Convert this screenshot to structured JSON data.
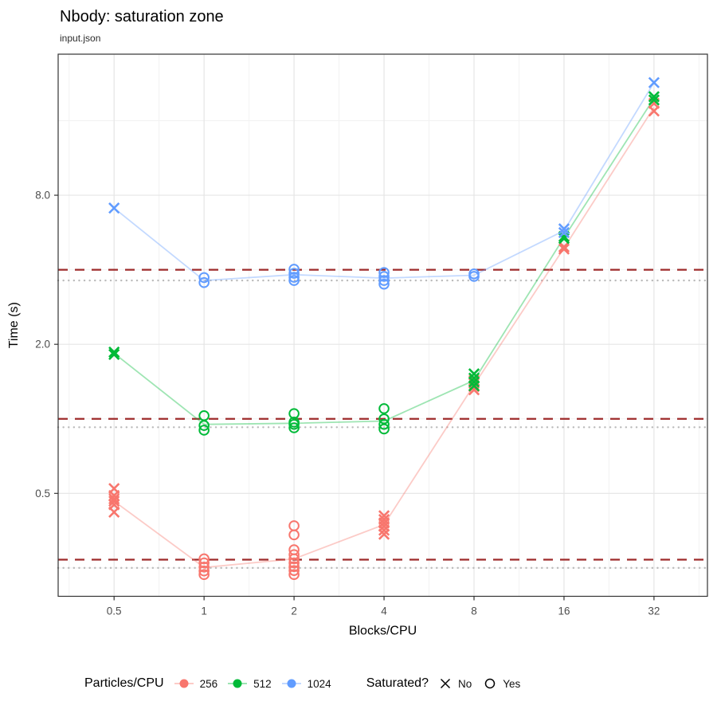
{
  "chart_data": {
    "type": "scatter",
    "title": "Nbody: saturation zone",
    "subtitle": "input.json",
    "xlabel": "Blocks/CPU",
    "ylabel": "Time (s)",
    "x_scale": "log2",
    "y_scale": "log2",
    "x_ticks": [
      0.5,
      1,
      2,
      4,
      8,
      16,
      32
    ],
    "x_tick_labels": [
      "0.5",
      "1",
      "2",
      "4",
      "8",
      "16",
      "32"
    ],
    "y_ticks": [
      0.5,
      2,
      8
    ],
    "y_tick_labels": [
      "0.5",
      "2.0",
      "8.0"
    ],
    "x_minor": [
      0.3536,
      0.7071,
      1.4142,
      2.8284,
      5.6569,
      11.3137,
      22.6274,
      45.2548
    ],
    "y_minor": [
      0.25,
      1,
      4,
      16
    ],
    "x_range": [
      0.325,
      48.3
    ],
    "y_range": [
      0.192,
      29.7
    ],
    "grid": true,
    "panel_border_color": "#333333",
    "grid_major_color": "#e5e5e5",
    "grid_minor_color": "#f2f2f2",
    "ref_lines": {
      "dashed": {
        "style": "dashed",
        "color": "#9e2b2b",
        "values": [
          4.0,
          1.0,
          0.27
        ]
      },
      "dotted": {
        "style": "dotted",
        "color": "#bbbbbb",
        "values": [
          3.62,
          0.925,
          0.25
        ]
      }
    },
    "legend": {
      "color_title": "Particles/CPU",
      "shape_title": "Saturated?",
      "shape_items": [
        {
          "label": "No",
          "shape": "X"
        },
        {
          "label": "Yes",
          "shape": "O"
        }
      ]
    },
    "point_format": "[blocks_per_cpu, time_s, shape X=not-saturated O=saturated]",
    "series": [
      {
        "name": "256",
        "color": "#F8766D",
        "line_x": [
          0.5,
          1,
          2,
          4,
          8,
          16,
          32
        ],
        "line_y": [
          0.465,
          0.251,
          0.272,
          0.374,
          1.37,
          4.9,
          18.1
        ],
        "points": [
          [
            0.5,
            0.523,
            "X"
          ],
          [
            0.5,
            0.49,
            "X"
          ],
          [
            0.5,
            0.475,
            "X"
          ],
          [
            0.5,
            0.465,
            "X"
          ],
          [
            0.5,
            0.45,
            "X"
          ],
          [
            0.5,
            0.42,
            "X"
          ],
          [
            1,
            0.272,
            "O"
          ],
          [
            1,
            0.262,
            "O"
          ],
          [
            1,
            0.252,
            "O"
          ],
          [
            1,
            0.243,
            "O"
          ],
          [
            1,
            0.235,
            "O"
          ],
          [
            2,
            0.37,
            "O"
          ],
          [
            2,
            0.34,
            "O"
          ],
          [
            2,
            0.296,
            "O"
          ],
          [
            2,
            0.283,
            "O"
          ],
          [
            2,
            0.272,
            "O"
          ],
          [
            2,
            0.262,
            "O"
          ],
          [
            2,
            0.253,
            "O"
          ],
          [
            2,
            0.244,
            "O"
          ],
          [
            2,
            0.235,
            "O"
          ],
          [
            4,
            0.406,
            "X"
          ],
          [
            4,
            0.392,
            "X"
          ],
          [
            4,
            0.38,
            "X"
          ],
          [
            4,
            0.368,
            "X"
          ],
          [
            4,
            0.355,
            "X"
          ],
          [
            4,
            0.342,
            "X"
          ],
          [
            8,
            1.43,
            "X"
          ],
          [
            8,
            1.39,
            "X"
          ],
          [
            8,
            1.35,
            "X"
          ],
          [
            8,
            1.31,
            "X"
          ],
          [
            16,
            4.95,
            "X"
          ],
          [
            16,
            4.85,
            "X"
          ],
          [
            32,
            18.8,
            "X"
          ],
          [
            32,
            17.5,
            "X"
          ]
        ]
      },
      {
        "name": "512",
        "color": "#00BA38",
        "line_x": [
          0.5,
          1,
          2,
          4,
          8,
          16,
          32
        ],
        "line_y": [
          1.84,
          0.95,
          0.96,
          0.98,
          1.43,
          5.4,
          19.7
        ],
        "points": [
          [
            0.5,
            1.86,
            "X"
          ],
          [
            0.5,
            1.82,
            "X"
          ],
          [
            1,
            1.03,
            "O"
          ],
          [
            1,
            0.94,
            "O"
          ],
          [
            1,
            0.9,
            "O"
          ],
          [
            2,
            1.05,
            "O"
          ],
          [
            2,
            0.97,
            "O"
          ],
          [
            2,
            0.95,
            "O"
          ],
          [
            2,
            0.92,
            "O"
          ],
          [
            4,
            1.1,
            "O"
          ],
          [
            4,
            1.0,
            "O"
          ],
          [
            4,
            0.95,
            "O"
          ],
          [
            4,
            0.91,
            "O"
          ],
          [
            8,
            1.52,
            "X"
          ],
          [
            8,
            1.46,
            "X"
          ],
          [
            8,
            1.41,
            "X"
          ],
          [
            8,
            1.36,
            "X"
          ],
          [
            16,
            5.45,
            "X"
          ],
          [
            16,
            5.35,
            "X"
          ],
          [
            32,
            20.0,
            "X"
          ],
          [
            32,
            19.4,
            "X"
          ]
        ]
      },
      {
        "name": "1024",
        "color": "#619CFF",
        "line_x": [
          0.5,
          1,
          2,
          4,
          8,
          16,
          32
        ],
        "line_y": [
          7.1,
          3.62,
          3.82,
          3.7,
          3.8,
          5.75,
          22.8
        ],
        "points": [
          [
            0.5,
            7.1,
            "X"
          ],
          [
            1,
            3.72,
            "O"
          ],
          [
            1,
            3.55,
            "O"
          ],
          [
            2,
            4.02,
            "O"
          ],
          [
            2,
            3.87,
            "O"
          ],
          [
            2,
            3.73,
            "O"
          ],
          [
            2,
            3.62,
            "O"
          ],
          [
            4,
            3.9,
            "O"
          ],
          [
            4,
            3.76,
            "O"
          ],
          [
            4,
            3.62,
            "O"
          ],
          [
            4,
            3.5,
            "O"
          ],
          [
            8,
            3.85,
            "O"
          ],
          [
            8,
            3.76,
            "O"
          ],
          [
            16,
            5.85,
            "X"
          ],
          [
            16,
            5.65,
            "X"
          ],
          [
            32,
            22.8,
            "X"
          ]
        ]
      }
    ]
  }
}
